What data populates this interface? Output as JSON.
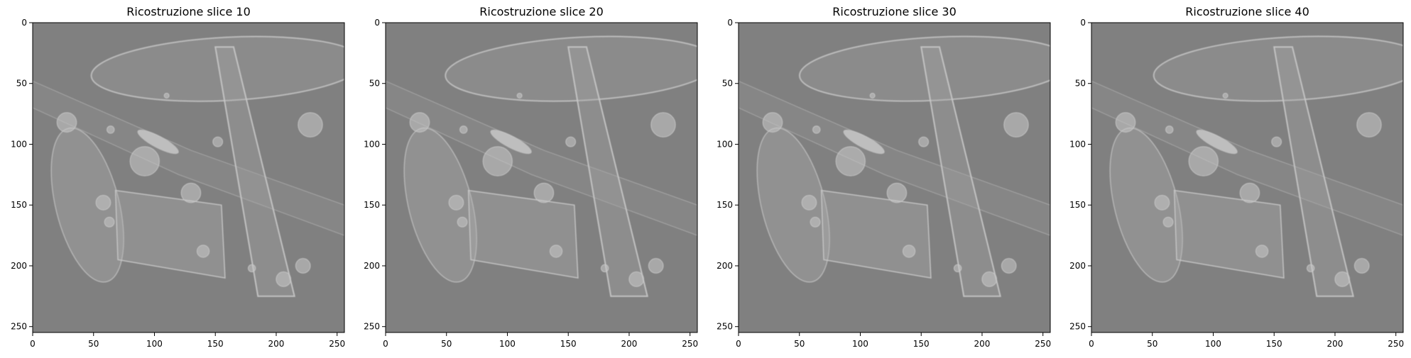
{
  "figure": {
    "panels": [
      {
        "title": "Ricostruzione slice 10"
      },
      {
        "title": "Ricostruzione slice 20"
      },
      {
        "title": "Ricostruzione slice 30"
      },
      {
        "title": "Ricostruzione slice 40"
      }
    ],
    "x_ticks": [
      "0",
      "50",
      "100",
      "150",
      "200",
      "250"
    ],
    "y_ticks": [
      "0",
      "50",
      "100",
      "150",
      "200",
      "250"
    ],
    "colors": {
      "background": "#808080",
      "frame": "#000000"
    }
  }
}
